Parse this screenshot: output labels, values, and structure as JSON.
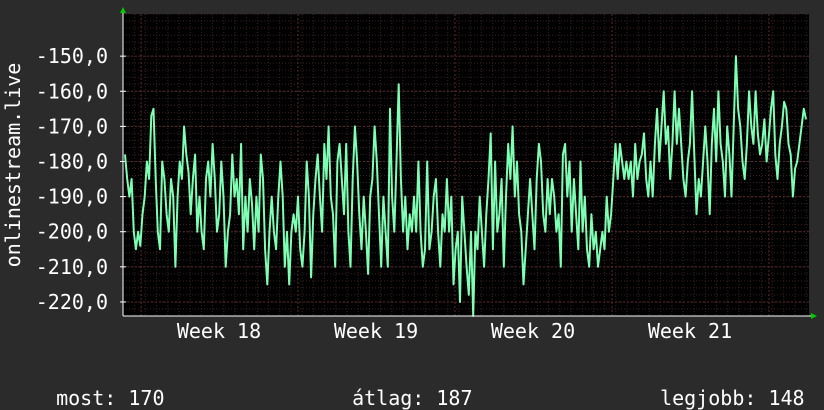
{
  "chart_data": {
    "type": "line",
    "title": "",
    "xlabel": "",
    "ylabel": "onlinestream.live",
    "ylim": [
      -224,
      -138
    ],
    "y_ticks": [
      -150,
      -160,
      -170,
      -180,
      -190,
      -200,
      -210,
      -220
    ],
    "y_tick_labels": [
      "-150,0",
      "-160,0",
      "-170,0",
      "-180,0",
      "-190,0",
      "-200,0",
      "-210,0",
      "-220,0"
    ],
    "x_ticks": [
      "Week 18",
      "Week 19",
      "Week 20",
      "Week 21"
    ],
    "grid": true,
    "colors": {
      "background": "#2b2b2b",
      "plot_background": "#000000",
      "grid_minor": "#3a2222",
      "grid_major": "#5a2a2a",
      "line": "#7fffb4",
      "axis": "#ffffff",
      "arrow": "#00cc00"
    },
    "series": [
      {
        "values": [
          -178,
          -185,
          -190,
          -185,
          -200,
          -205,
          -200,
          -204,
          -195,
          -190,
          -180,
          -185,
          -167,
          -165,
          -185,
          -200,
          -205,
          -180,
          -185,
          -195,
          -200,
          -185,
          -190,
          -210,
          -190,
          -180,
          -185,
          -170,
          -178,
          -183,
          -195,
          -185,
          -178,
          -200,
          -190,
          -200,
          -205,
          -185,
          -180,
          -190,
          -175,
          -185,
          -200,
          -195,
          -180,
          -190,
          -210,
          -200,
          -195,
          -178,
          -190,
          -185,
          -195,
          -175,
          -205,
          -190,
          -200,
          -185,
          -192,
          -205,
          -190,
          -200,
          -178,
          -185,
          -205,
          -215,
          -200,
          -190,
          -200,
          -205,
          -190,
          -180,
          -190,
          -210,
          -200,
          -215,
          -200,
          -195,
          -200,
          -190,
          -205,
          -210,
          -200,
          -180,
          -190,
          -213,
          -195,
          -185,
          -178,
          -190,
          -200,
          -175,
          -185,
          -170,
          -190,
          -195,
          -210,
          -180,
          -175,
          -185,
          -195,
          -175,
          -200,
          -210,
          -185,
          -170,
          -180,
          -195,
          -205,
          -190,
          -200,
          -212,
          -190,
          -185,
          -170,
          -180,
          -195,
          -210,
          -190,
          -200,
          -210,
          -165,
          -190,
          -200,
          -180,
          -158,
          -185,
          -200,
          -190,
          -205,
          -195,
          -200,
          -190,
          -200,
          -180,
          -200,
          -210,
          -205,
          -180,
          -205,
          -200,
          -190,
          -185,
          -200,
          -210,
          -195,
          -200,
          -185,
          -200,
          -190,
          -215,
          -205,
          -200,
          -220,
          -190,
          -200,
          -210,
          -218,
          -200,
          -224,
          -200,
          -205,
          -190,
          -200,
          -210,
          -195,
          -185,
          -172,
          -205,
          -180,
          -200,
          -195,
          -185,
          -210,
          -190,
          -175,
          -185,
          -170,
          -190,
          -180,
          -195,
          -200,
          -215,
          -205,
          -195,
          -185,
          -195,
          -205,
          -185,
          -175,
          -180,
          -195,
          -200,
          -185,
          -195,
          -185,
          -190,
          -200,
          -195,
          -210,
          -178,
          -175,
          -190,
          -180,
          -200,
          -185,
          -195,
          -205,
          -180,
          -200,
          -190,
          -205,
          -210,
          -195,
          -205,
          -200,
          -210,
          -205,
          -200,
          -205,
          -190,
          -200,
          -195,
          -185,
          -175,
          -185,
          -175,
          -180,
          -185,
          -180,
          -185,
          -180,
          -190,
          -175,
          -185,
          -180,
          -178,
          -172,
          -185,
          -190,
          -180,
          -190,
          -175,
          -165,
          -180,
          -170,
          -160,
          -175,
          -170,
          -185,
          -175,
          -160,
          -175,
          -165,
          -175,
          -185,
          -190,
          -180,
          -175,
          -160,
          -178,
          -195,
          -185,
          -190,
          -180,
          -170,
          -180,
          -195,
          -175,
          -165,
          -180,
          -160,
          -175,
          -180,
          -190,
          -170,
          -178,
          -190,
          -170,
          -150,
          -165,
          -170,
          -180,
          -185,
          -175,
          -160,
          -170,
          -175,
          -160,
          -172,
          -178,
          -175,
          -168,
          -180,
          -173,
          -165,
          -160,
          -178,
          -185,
          -175,
          -170,
          -163,
          -165,
          -175,
          -178,
          -190,
          -182,
          -180,
          -175,
          -170,
          -165,
          -168
        ],
        "sample_values_note": "",
        "color": "#7fffb4"
      }
    ],
    "footer": {
      "now_label": "most:",
      "now_value": "170",
      "avg_label": "átlag:",
      "avg_value": "187",
      "best_label": "legjobb:",
      "best_value": "148"
    }
  }
}
